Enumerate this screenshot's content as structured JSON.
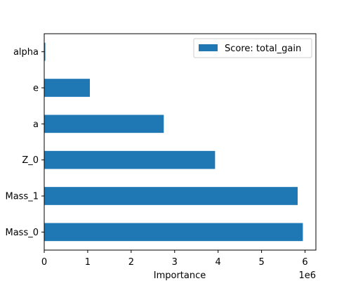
{
  "chart_data": {
    "type": "bar",
    "orientation": "horizontal",
    "categories": [
      "alpha",
      "e",
      "a",
      "Z_0",
      "Mass_1",
      "Mass_0"
    ],
    "series": [
      {
        "name": "Score: total_gain",
        "values": [
          25000,
          1050000,
          2750000,
          3930000,
          5830000,
          5950000
        ]
      }
    ],
    "xlabel": "Importance",
    "ylabel": "",
    "xlim": [
      0,
      6.25
    ],
    "x_ticks": [
      0,
      1,
      2,
      3,
      4,
      5,
      6
    ],
    "x_scale_label": "1e6",
    "grid": false,
    "legend_position": "top-right",
    "bar_color": "#1f77b4"
  }
}
